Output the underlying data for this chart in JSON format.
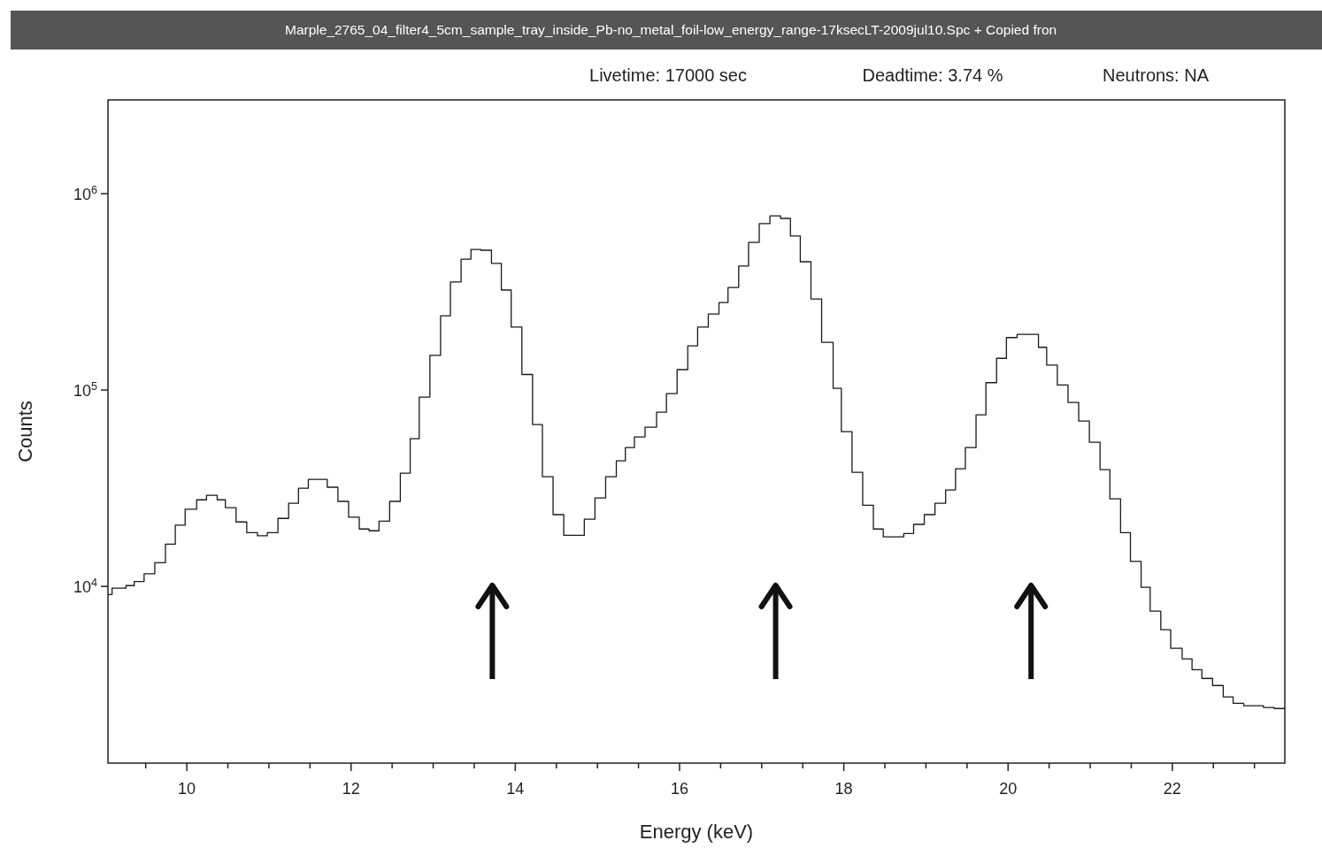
{
  "chart_data": {
    "type": "step",
    "title": "Marple_2765_04_filter4_5cm_sample_tray_inside_Pb-no_metal_foil-low_energy_range-17ksecLT-2009jul10.Spc +   Copied fron",
    "annotations": [
      "Livetime: 17000 sec",
      "Deadtime: 3.74 %",
      "Neutrons: NA"
    ],
    "xlabel": "Energy (keV)",
    "ylabel": "Counts",
    "x": [
      9.04,
      9.09,
      9.26,
      9.36,
      9.48,
      9.61,
      9.74,
      9.86,
      9.98,
      10.12,
      10.24,
      10.37,
      10.47,
      10.6,
      10.73,
      10.86,
      10.98,
      11.11,
      11.24,
      11.36,
      11.48,
      11.71,
      11.84,
      11.97,
      12.1,
      12.22,
      12.34,
      12.47,
      12.6,
      12.72,
      12.83,
      12.96,
      13.09,
      13.21,
      13.34,
      13.46,
      13.58,
      13.71,
      13.83,
      13.95,
      14.08,
      14.21,
      14.33,
      14.46,
      14.59,
      14.84,
      14.97,
      15.1,
      15.23,
      15.34,
      15.45,
      15.58,
      15.72,
      15.84,
      15.97,
      16.1,
      16.22,
      16.35,
      16.48,
      16.59,
      16.72,
      16.84,
      16.97,
      17.1,
      17.23,
      17.35,
      17.47,
      17.6,
      17.73,
      17.87,
      17.97,
      18.1,
      18.23,
      18.36,
      18.48,
      18.73,
      18.85,
      18.98,
      19.11,
      19.24,
      19.36,
      19.48,
      19.61,
      19.73,
      19.86,
      19.98,
      20.11,
      20.23,
      20.37,
      20.47,
      20.6,
      20.73,
      20.86,
      20.99,
      21.12,
      21.24,
      21.37,
      21.49,
      21.62,
      21.73,
      21.86,
      21.98,
      22.12,
      22.24,
      22.36,
      22.49,
      22.62,
      22.74,
      22.87,
      23.11,
      23.24,
      23.37
    ],
    "series": [
      {
        "color": "#1a1a1a",
        "values": [
          9100,
          9800,
          10100,
          10600,
          11600,
          13200,
          16400,
          20500,
          24700,
          27600,
          29100,
          27600,
          25200,
          21300,
          18800,
          18100,
          18800,
          22200,
          26500,
          31600,
          35100,
          32000,
          27100,
          22500,
          19600,
          19200,
          21500,
          27100,
          37700,
          56500,
          92000,
          150000,
          239000,
          355000,
          464000,
          520000,
          515000,
          441000,
          323000,
          209000,
          120000,
          66700,
          36200,
          23200,
          18200,
          22000,
          28200,
          36200,
          43600,
          50900,
          57700,
          64700,
          77100,
          95900,
          127000,
          168000,
          209000,
          244000,
          279000,
          333000,
          428000,
          565000,
          703000,
          771000,
          748000,
          608000,
          450000,
          291000,
          175000,
          102000,
          61400,
          38100,
          25900,
          19600,
          17900,
          18600,
          20700,
          23200,
          26500,
          31000,
          39700,
          50900,
          74800,
          109000,
          145000,
          185000,
          192000,
          192000,
          165000,
          134000,
          106000,
          86500,
          69500,
          54200,
          39300,
          27900,
          18800,
          13400,
          9900,
          7480,
          6020,
          4840,
          4280,
          3770,
          3400,
          3130,
          2740,
          2540,
          2470,
          2420,
          2390,
          2390
        ]
      }
    ],
    "log": "y",
    "xlim": [
      9.04,
      23.37
    ],
    "ylim": [
      1260,
      3000000
    ],
    "xticks": [
      {
        "value": 9.5,
        "label": null
      },
      10,
      {
        "value": 10.5,
        "label": null
      },
      {
        "value": 11,
        "label": null
      },
      {
        "value": 11.5,
        "label": null
      },
      12,
      {
        "value": 12.5,
        "label": null
      },
      {
        "value": 13,
        "label": null
      },
      {
        "value": 13.5,
        "label": null
      },
      14,
      {
        "value": 14.5,
        "label": null
      },
      {
        "value": 15,
        "label": null
      },
      {
        "value": 15.5,
        "label": null
      },
      16,
      {
        "value": 16.5,
        "label": null
      },
      {
        "value": 17,
        "label": null
      },
      {
        "value": 17.5,
        "label": null
      },
      18,
      {
        "value": 18.5,
        "label": null
      },
      {
        "value": 19,
        "label": null
      },
      {
        "value": 19.5,
        "label": null
      },
      20,
      {
        "value": 20.5,
        "label": null
      },
      {
        "value": 21,
        "label": null
      },
      {
        "value": 21.5,
        "label": null
      },
      22,
      {
        "value": 22.5,
        "label": null
      },
      {
        "value": 23,
        "label": null
      }
    ],
    "yticks": [
      {
        "value": 10000,
        "label": "10$^{4}$"
      },
      {
        "value": 100000,
        "label": "10$^{5}$"
      },
      {
        "value": 1000000,
        "label": "10$^{6}$"
      }
    ],
    "grid": false
  }
}
